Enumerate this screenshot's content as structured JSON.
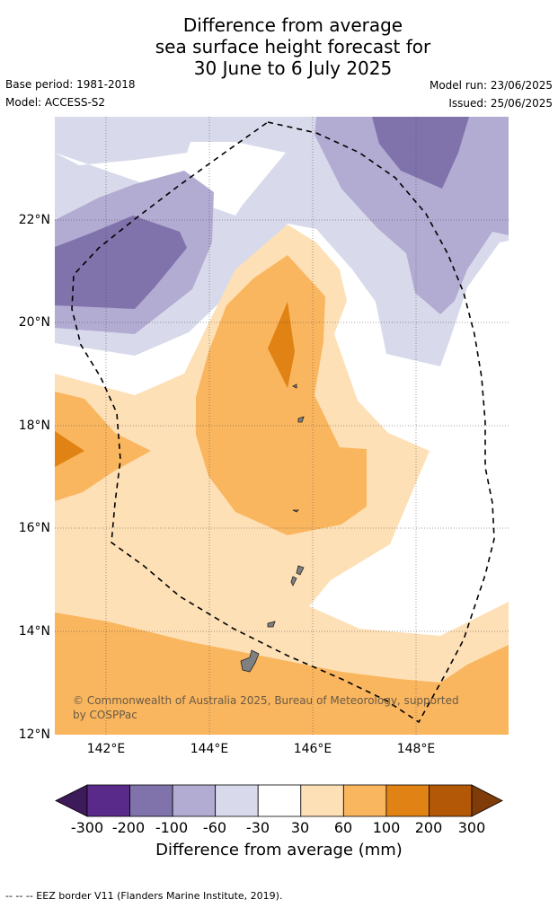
{
  "title": {
    "line1": "Difference from average",
    "line2": "sea surface height forecast for",
    "line3": "30 June to 6 July 2025"
  },
  "meta": {
    "base_period": "Base period: 1981-2018",
    "model": "Model: ACCESS-S2",
    "model_run": "Model run: 23/06/2025",
    "issued": "Issued: 25/06/2025"
  },
  "map": {
    "latitude_labels": [
      "22°N",
      "20°N",
      "18°N",
      "16°N",
      "14°N",
      "12°N"
    ],
    "longitude_labels": [
      "142°E",
      "144°E",
      "146°E",
      "148°E"
    ],
    "copyright": "© Commonwealth of Australia 2025, Bureau of Meteorology, supported by COSPPac"
  },
  "colorbar": {
    "labels": [
      "-300",
      "-200",
      "-100",
      "-60",
      "-30",
      "30",
      "60",
      "100",
      "200",
      "300"
    ],
    "colors": [
      "#3d1a5a",
      "#5a2a8a",
      "#8073ac",
      "#b2abd2",
      "#d8daeb",
      "#ffffff",
      "#fee0b6",
      "#f9b65f",
      "#e08214",
      "#b35806",
      "#7f3b08"
    ],
    "title": "Difference from average (mm)"
  },
  "footer": "--  --  -- EEZ border V11 (Flanders Marine Institute, 2019)."
}
